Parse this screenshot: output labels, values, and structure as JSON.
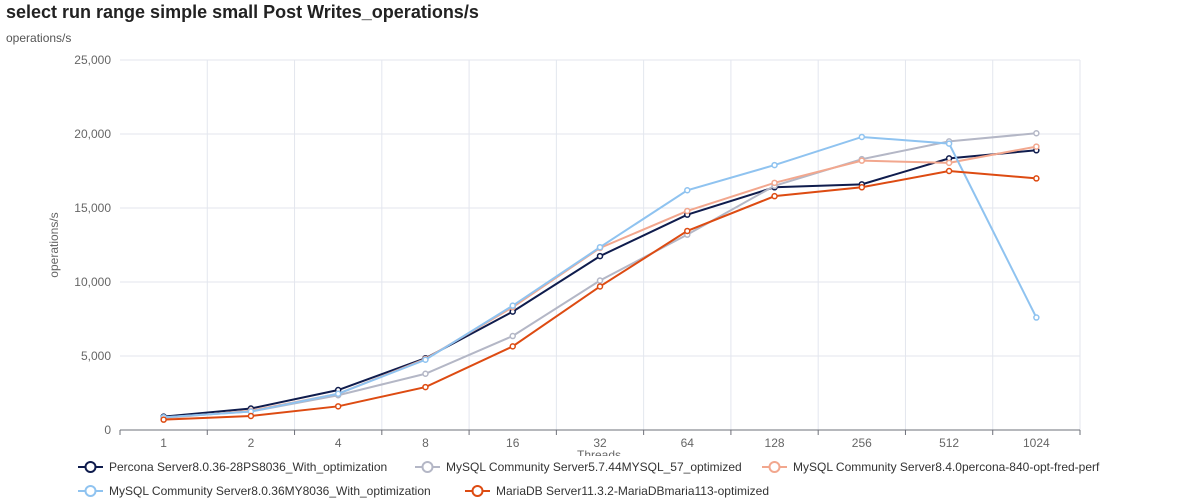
{
  "header": {
    "title": "select run range simple small Post Writes_operations/s",
    "subtitle": "operations/s"
  },
  "chart_data": {
    "type": "line",
    "title": "select run range simple small Post Writes_operations/s",
    "xlabel": "Threads",
    "ylabel": "operations/s",
    "ylim": [
      0,
      25000
    ],
    "yticks": [
      "0",
      "5,000",
      "10,000",
      "15,000",
      "20,000",
      "25,000"
    ],
    "ytick_values": [
      0,
      5000,
      10000,
      15000,
      20000,
      25000
    ],
    "categories": [
      "1",
      "2",
      "4",
      "8",
      "16",
      "32",
      "64",
      "128",
      "256",
      "512",
      "1024"
    ],
    "grid": true,
    "legend_position": "bottom-left",
    "series": [
      {
        "name": "Percona Server8.0.36-28PS8036_With_optimization",
        "color": "#0f1c4d",
        "values": [
          900,
          1450,
          2700,
          4850,
          8000,
          11750,
          14550,
          16400,
          16600,
          18350,
          18900
        ]
      },
      {
        "name": "MySQL Community Server5.7.44MYSQL_57_optimized",
        "color": "#b4b7c6",
        "values": [
          850,
          1250,
          2350,
          3800,
          6350,
          10100,
          13200,
          16500,
          18300,
          19500,
          20050
        ]
      },
      {
        "name": "MySQL Community Server8.4.0percona-840-opt-fred-perf",
        "color": "#f2a78e",
        "values": [
          800,
          1300,
          2450,
          4800,
          8300,
          12300,
          14800,
          16700,
          18200,
          18050,
          19150
        ]
      },
      {
        "name": "MySQL Community Server8.0.36MY8036_With_optimization",
        "color": "#8fc3f0",
        "values": [
          850,
          1250,
          2450,
          4750,
          8400,
          12350,
          16200,
          17900,
          19800,
          19350,
          7600
        ]
      },
      {
        "name": "MariaDB Server11.3.2-MariaDBmaria113-optimized",
        "color": "#dd4b12",
        "values": [
          700,
          950,
          1600,
          2900,
          5650,
          9700,
          13450,
          15800,
          16400,
          17500,
          17000
        ]
      }
    ]
  }
}
